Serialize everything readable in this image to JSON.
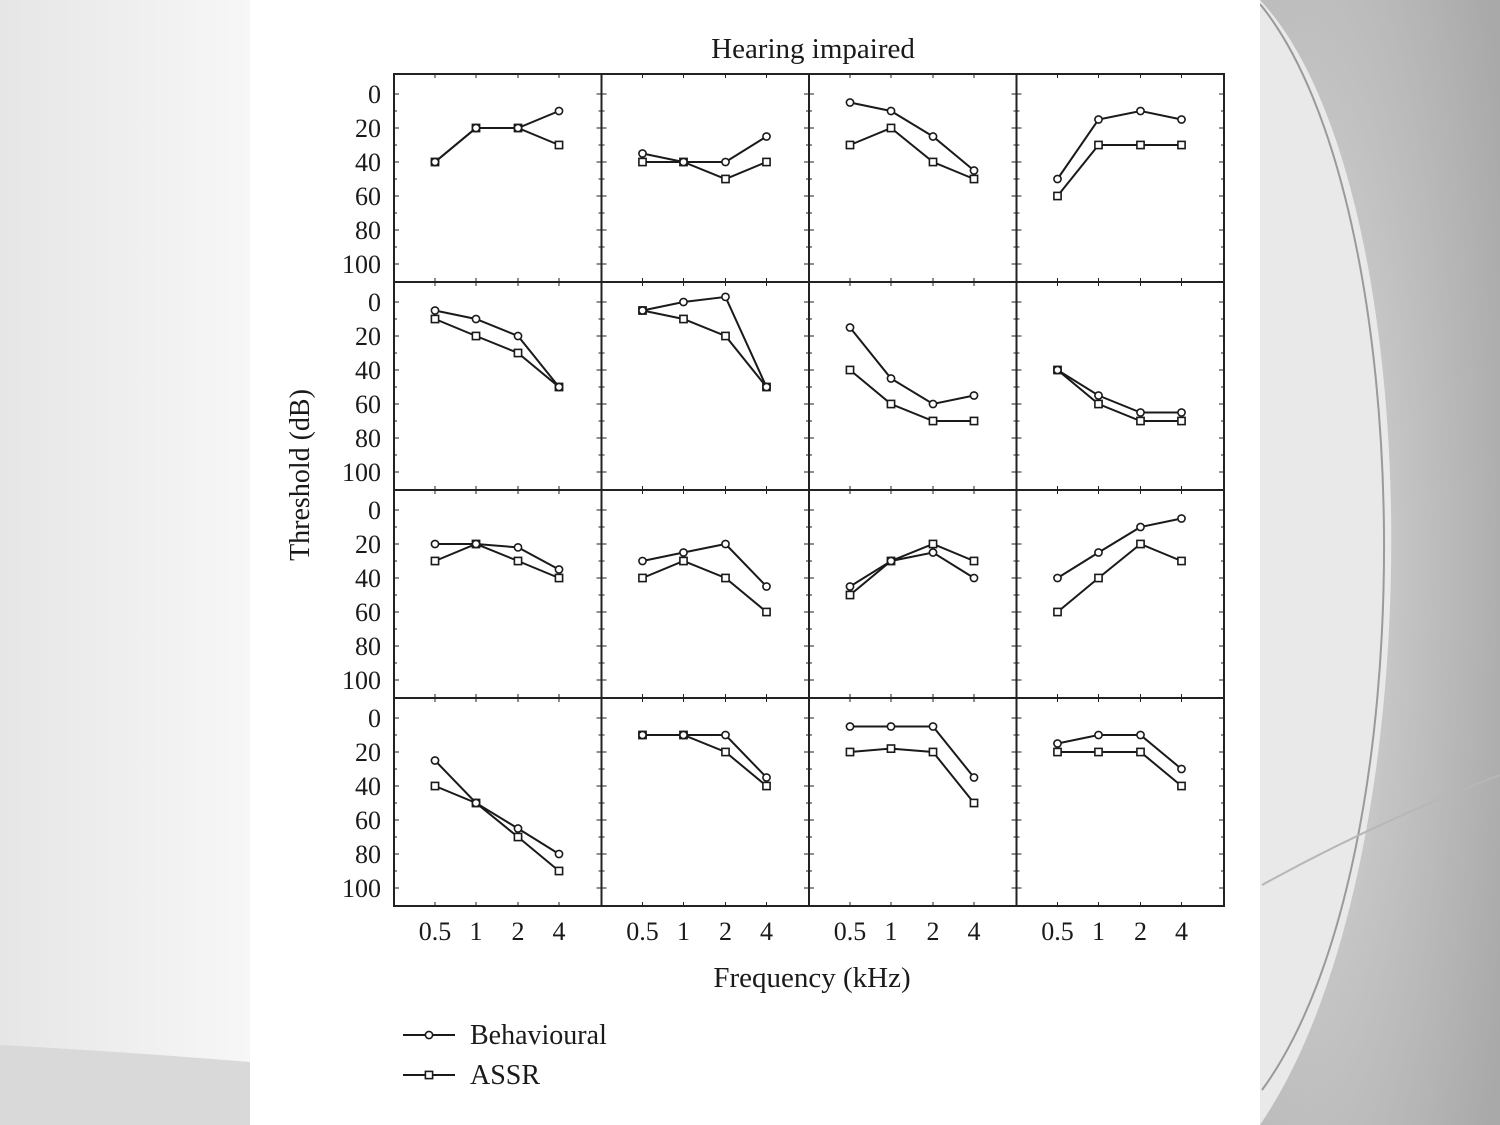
{
  "chart_data": {
    "type": "line",
    "title": "Hearing impaired",
    "xlabel": "Frequency (kHz)",
    "ylabel": "Threshold (dB)",
    "x": [
      "0.5",
      "1",
      "2",
      "4"
    ],
    "y_ticks": [
      "0",
      "20",
      "40",
      "60",
      "80",
      "100"
    ],
    "ylim": [
      0,
      110
    ],
    "y_inverted": true,
    "grid": false,
    "legend": {
      "position": "bottom-left",
      "entries": [
        {
          "label": "Behavioural",
          "marker": "circle"
        },
        {
          "label": "ASSR",
          "marker": "square"
        }
      ]
    },
    "layout": {
      "rows": 4,
      "cols": 4
    },
    "panels": [
      {
        "behavioural": [
          40,
          20,
          20,
          10
        ],
        "assr": [
          40,
          20,
          20,
          30
        ]
      },
      {
        "behavioural": [
          35,
          40,
          40,
          25
        ],
        "assr": [
          40,
          40,
          50,
          40
        ]
      },
      {
        "behavioural": [
          5,
          10,
          25,
          45
        ],
        "assr": [
          30,
          20,
          40,
          50
        ]
      },
      {
        "behavioural": [
          50,
          15,
          10,
          15
        ],
        "assr": [
          60,
          30,
          30,
          30
        ]
      },
      {
        "behavioural": [
          5,
          10,
          20,
          50
        ],
        "assr": [
          10,
          20,
          30,
          50
        ]
      },
      {
        "behavioural": [
          5,
          0,
          -3,
          50
        ],
        "assr": [
          5,
          10,
          20,
          50
        ]
      },
      {
        "behavioural": [
          15,
          45,
          60,
          55
        ],
        "assr": [
          40,
          60,
          70,
          70
        ]
      },
      {
        "behavioural": [
          40,
          55,
          65,
          65
        ],
        "assr": [
          40,
          60,
          70,
          70
        ]
      },
      {
        "behavioural": [
          20,
          20,
          22,
          35
        ],
        "assr": [
          30,
          20,
          30,
          40
        ]
      },
      {
        "behavioural": [
          30,
          25,
          20,
          45
        ],
        "assr": [
          40,
          30,
          40,
          60
        ]
      },
      {
        "behavioural": [
          45,
          30,
          25,
          40
        ],
        "assr": [
          50,
          30,
          20,
          30
        ]
      },
      {
        "behavioural": [
          40,
          25,
          10,
          5
        ],
        "assr": [
          60,
          40,
          20,
          30
        ]
      },
      {
        "behavioural": [
          25,
          50,
          65,
          80
        ],
        "assr": [
          40,
          50,
          70,
          90
        ]
      },
      {
        "behavioural": [
          10,
          10,
          10,
          35
        ],
        "assr": [
          10,
          10,
          20,
          40
        ]
      },
      {
        "behavioural": [
          5,
          5,
          5,
          35
        ],
        "assr": [
          20,
          18,
          20,
          50
        ]
      },
      {
        "behavioural": [
          15,
          10,
          10,
          30
        ],
        "assr": [
          20,
          20,
          20,
          40
        ]
      }
    ]
  }
}
